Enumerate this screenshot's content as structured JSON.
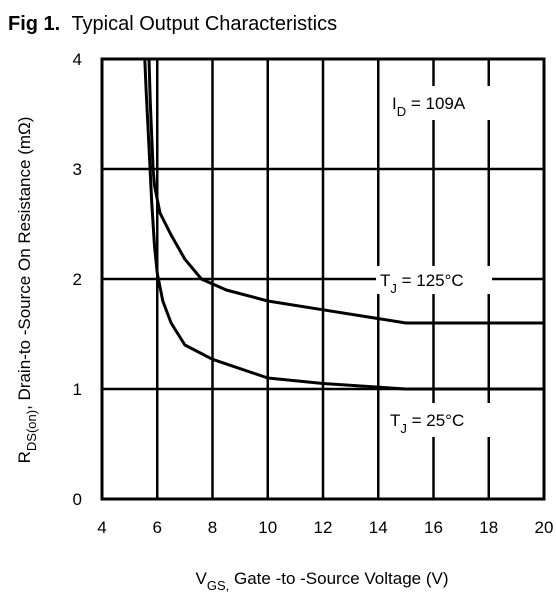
{
  "chart_data": {
    "type": "line",
    "title_prefix": "Fig 1.",
    "title": "Typical Output Characteristics",
    "xlabel": {
      "main": "V",
      "sub": "GS,",
      "rest": " Gate -to -Source Voltage  (V)"
    },
    "ylabel": {
      "main": "R",
      "sub": "DS(on)",
      "rest": ",  Drain-to -Source On Resistance (mΩ)"
    },
    "xlim": [
      4,
      20
    ],
    "ylim": [
      0,
      4
    ],
    "xticks": [
      "4",
      "6",
      "8",
      "10",
      "12",
      "14",
      "16",
      "18",
      "20"
    ],
    "yticks": [
      "0",
      "1",
      "2",
      "3",
      "4"
    ],
    "grid": true,
    "annotations": {
      "id": {
        "main": "I",
        "sub": "D",
        "rest": " = 109A"
      },
      "tj125": {
        "main": "T",
        "sub": "J",
        "rest": " = 125°C"
      },
      "tj25": {
        "main": "T",
        "sub": "J",
        "rest": " = 25°C"
      }
    },
    "series": [
      {
        "name": "T_J = 125°C",
        "x": [
          5.7,
          5.75,
          5.8,
          5.85,
          5.9,
          6.1,
          6.5,
          7.0,
          7.6,
          8.5,
          10,
          12,
          15,
          20
        ],
        "y": [
          4.0,
          3.6,
          3.3,
          3.0,
          2.85,
          2.6,
          2.4,
          2.18,
          2.0,
          1.9,
          1.8,
          1.72,
          1.6,
          1.6
        ]
      },
      {
        "name": "T_J = 25°C",
        "x": [
          5.55,
          5.6,
          5.7,
          5.8,
          5.9,
          6.0,
          6.2,
          6.5,
          7.0,
          8.0,
          10,
          12,
          15,
          20
        ],
        "y": [
          4.0,
          3.7,
          3.2,
          2.7,
          2.3,
          2.05,
          1.8,
          1.6,
          1.4,
          1.27,
          1.1,
          1.05,
          1.0,
          1.0
        ]
      }
    ]
  }
}
